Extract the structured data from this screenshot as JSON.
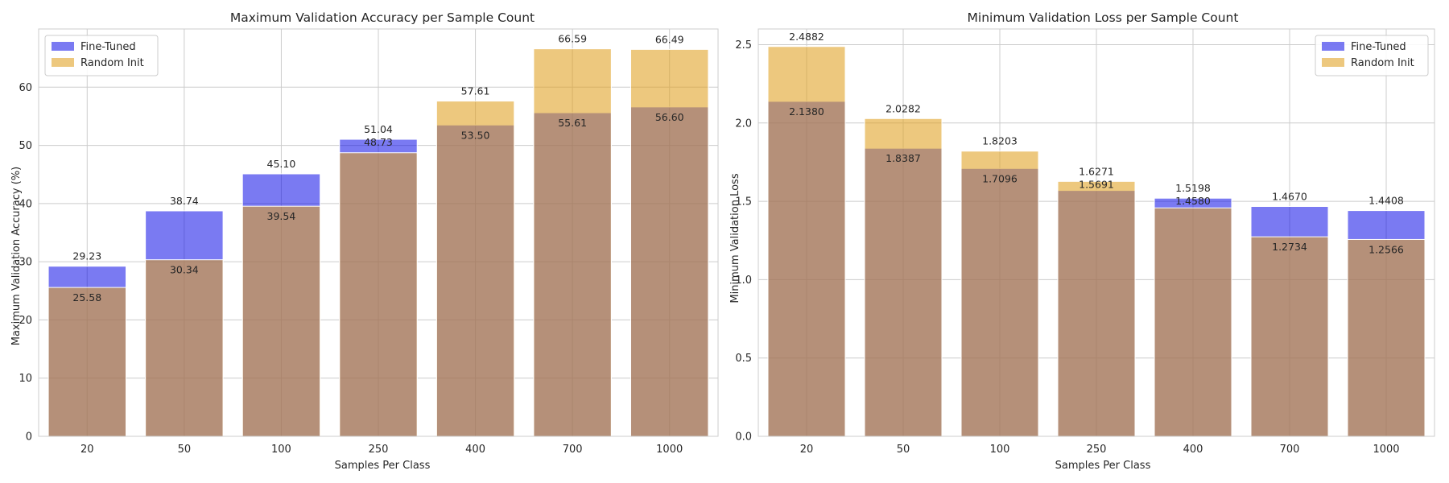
{
  "colors": {
    "fine_tuned": "#0000e6",
    "random_init": "#e0a020",
    "grid": "#cccccc",
    "text": "#262626"
  },
  "chart_data": [
    {
      "type": "bar",
      "title": "Maximum Validation Accuracy per Sample Count",
      "xlabel": "Samples Per Class",
      "ylabel": "Maximum Validation Accuracy (%)",
      "categories": [
        "20",
        "50",
        "100",
        "250",
        "400",
        "700",
        "1000"
      ],
      "ylim": [
        0,
        70
      ],
      "yticks": [
        0,
        10,
        20,
        30,
        40,
        50,
        60
      ],
      "ytick_labels": [
        "0",
        "10",
        "20",
        "30",
        "40",
        "50",
        "60"
      ],
      "grid": true,
      "legend_position": "top-left",
      "series": [
        {
          "name": "Fine-Tuned",
          "values": [
            29.23,
            38.74,
            45.1,
            51.04,
            53.5,
            55.61,
            56.6
          ],
          "labels": [
            "29.23",
            "38.74",
            "45.10",
            "51.04",
            "53.50",
            "55.61",
            "56.60"
          ]
        },
        {
          "name": "Random Init",
          "values": [
            25.58,
            30.34,
            39.54,
            48.73,
            57.61,
            66.59,
            66.49
          ],
          "labels": [
            "25.58",
            "30.34",
            "39.54",
            "48.73",
            "57.61",
            "66.59",
            "66.49"
          ]
        }
      ]
    },
    {
      "type": "bar",
      "title": "Minimum Validation Loss per Sample Count",
      "xlabel": "Samples Per Class",
      "ylabel": "Minimum Validation Loss",
      "categories": [
        "20",
        "50",
        "100",
        "250",
        "400",
        "700",
        "1000"
      ],
      "ylim": [
        0,
        2.6
      ],
      "yticks": [
        0,
        0.5,
        1.0,
        1.5,
        2.0,
        2.5
      ],
      "ytick_labels": [
        "0.0",
        "0.5",
        "1.0",
        "1.5",
        "2.0",
        "2.5"
      ],
      "grid": true,
      "legend_position": "top-right",
      "series": [
        {
          "name": "Fine-Tuned",
          "values": [
            2.138,
            1.8387,
            1.7096,
            1.5691,
            1.5198,
            1.467,
            1.4408
          ],
          "labels": [
            "2.1380",
            "1.8387",
            "1.7096",
            "1.5691",
            "1.5198",
            "1.4670",
            "1.4408"
          ]
        },
        {
          "name": "Random Init",
          "values": [
            2.4882,
            2.0282,
            1.8203,
            1.6271,
            1.458,
            1.2734,
            1.2566
          ],
          "labels": [
            "2.4882",
            "2.0282",
            "1.8203",
            "1.6271",
            "1.4580",
            "1.2734",
            "1.2566"
          ]
        }
      ]
    }
  ]
}
